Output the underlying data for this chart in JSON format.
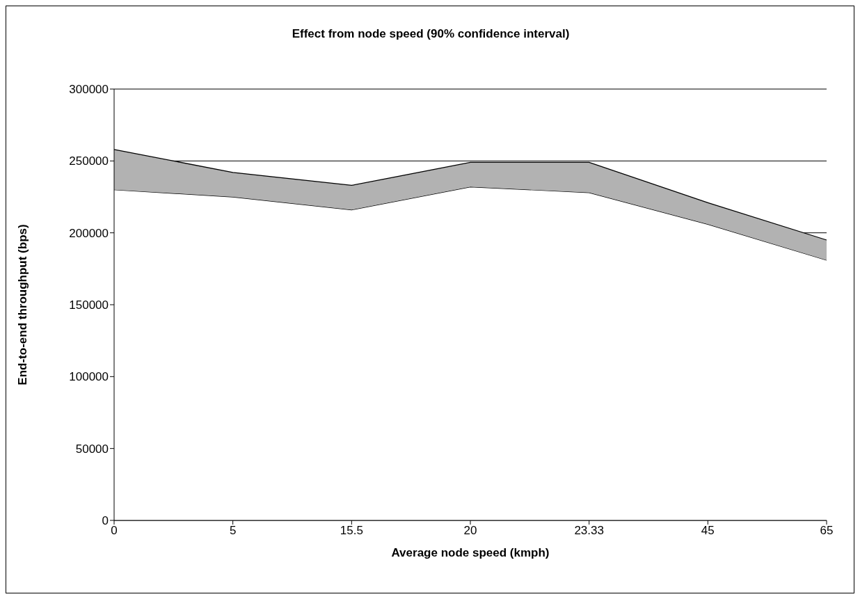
{
  "chart_data": {
    "type": "area",
    "title": "Effect from node speed (90% confidence interval)",
    "xlabel": "Average node speed (kmph)",
    "ylabel": "End-to-end throughput (bps)",
    "categories": [
      "0",
      "5",
      "15.5",
      "20",
      "23.33",
      "45",
      "65"
    ],
    "stacked": true,
    "series": [
      {
        "color": "#ffffff",
        "values": [
          230000,
          225000,
          216000,
          232000,
          228000,
          206000,
          181000
        ]
      },
      {
        "color": "#b2b2b2",
        "values": [
          28000,
          17000,
          17000,
          17000,
          21000,
          15000,
          14000
        ]
      }
    ],
    "ylim": [
      0,
      300000
    ],
    "yticks": [
      0,
      50000,
      100000,
      150000,
      200000,
      250000,
      300000
    ],
    "grid": "y",
    "legend": false
  }
}
